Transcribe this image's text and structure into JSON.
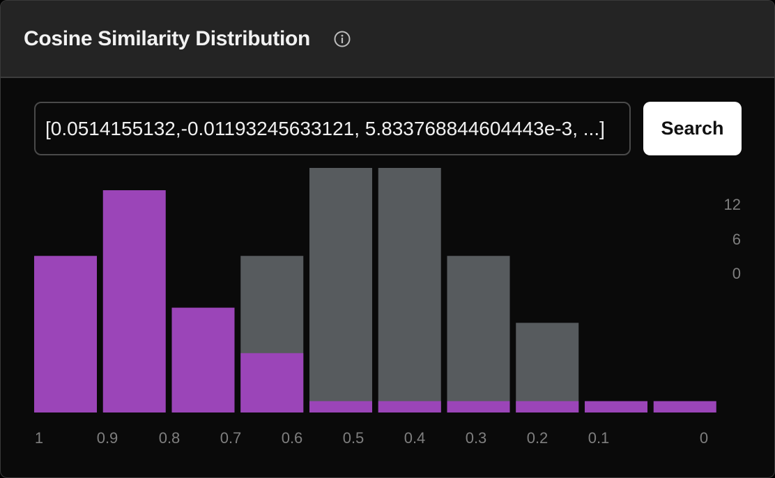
{
  "header": {
    "title": "Cosine Similarity Distribution",
    "info_icon": "info-icon"
  },
  "search": {
    "value": "[0.0514155132,-0.01193245633121, 5.833768844604443e-3, ...]",
    "button_label": "Search"
  },
  "colors": {
    "highlight": "#9b45b8",
    "background_bar": "#575b5e",
    "panel": "#0a0a0a",
    "header": "#242424"
  },
  "chart_data": {
    "type": "bar",
    "x_tick_labels": [
      "1",
      "0.9",
      "0.8",
      "0.7",
      "0.6",
      "0.5",
      "0.4",
      "0.3",
      "0.2",
      "0.1",
      "0"
    ],
    "y_tick_labels": [
      "12",
      "6",
      "0"
    ],
    "series": [
      {
        "values": [
          0,
          0,
          0,
          12.4,
          20.5,
          20.5,
          12.4,
          7.1,
          0,
          0
        ]
      },
      {
        "values": [
          12.4,
          17.6,
          8.3,
          4.7,
          0.9,
          0.9,
          0.9,
          0.9,
          0.9,
          0.9
        ]
      }
    ],
    "ylim": [
      0,
      17.6
    ]
  }
}
